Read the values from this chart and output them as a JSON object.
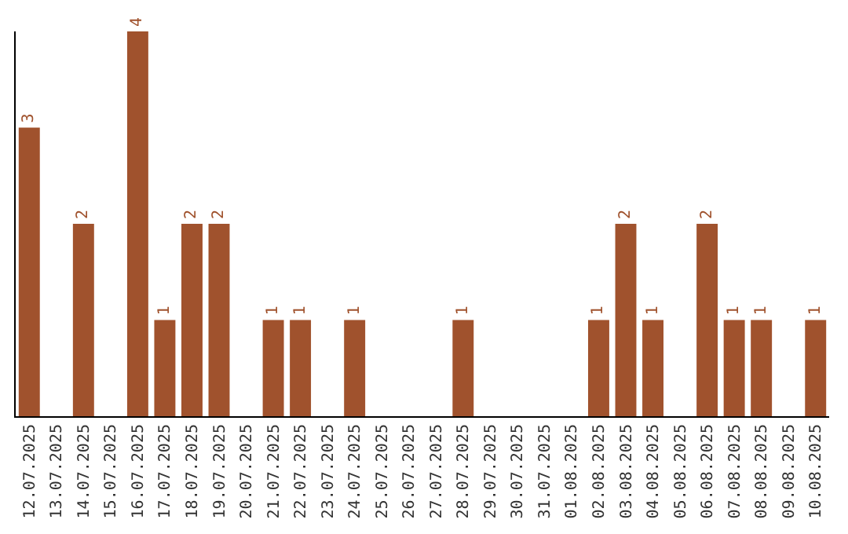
{
  "chart_data": {
    "type": "bar",
    "categories": [
      "12.07.2025",
      "13.07.2025",
      "14.07.2025",
      "15.07.2025",
      "16.07.2025",
      "17.07.2025",
      "18.07.2025",
      "19.07.2025",
      "20.07.2025",
      "21.07.2025",
      "22.07.2025",
      "23.07.2025",
      "24.07.2025",
      "25.07.2025",
      "26.07.2025",
      "27.07.2025",
      "28.07.2025",
      "29.07.2025",
      "30.07.2025",
      "31.07.2025",
      "01.08.2025",
      "02.08.2025",
      "03.08.2025",
      "04.08.2025",
      "05.08.2025",
      "06.08.2025",
      "07.08.2025",
      "08.08.2025",
      "09.08.2025",
      "10.08.2025"
    ],
    "values": [
      3,
      0,
      2,
      0,
      4,
      1,
      2,
      2,
      0,
      1,
      1,
      0,
      1,
      0,
      0,
      0,
      1,
      0,
      0,
      0,
      0,
      1,
      2,
      1,
      0,
      2,
      1,
      1,
      0,
      1
    ],
    "value_labels": [
      "3",
      null,
      "2",
      null,
      "4",
      "1",
      "2",
      "2",
      null,
      "1",
      "1",
      null,
      "1",
      null,
      null,
      null,
      "1",
      null,
      null,
      null,
      null,
      "1",
      "2",
      "1",
      null,
      "2",
      "1",
      "1",
      null,
      "1"
    ],
    "color": "#a0522d",
    "ylim": [
      0,
      4
    ]
  }
}
